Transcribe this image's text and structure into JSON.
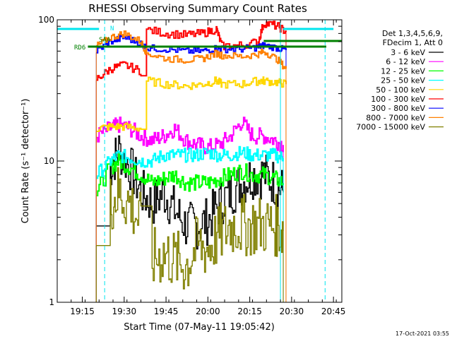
{
  "chart_data": {
    "type": "line",
    "title": "RHESSI Observing Summary Count Rates",
    "xlabel": "Start Time (07-May-11 19:05:42)",
    "ylabel": "Count Rate (s⁻¹ detector⁻¹)",
    "yscale": "log",
    "ylim": [
      1,
      100
    ],
    "xlim": [
      "19:06",
      "20:48"
    ],
    "x_ticks": [
      "19:15",
      "19:30",
      "19:45",
      "20:00",
      "20:15",
      "20:30",
      "20:45"
    ],
    "y_ticks": [
      "1",
      "10",
      "100"
    ],
    "grid": false,
    "legend_position": "right",
    "legend_header": [
      "Det 1,3,4,5,6,9,",
      "FDecim 1, Att 0"
    ],
    "annotations": {
      "flags": [
        "RD6",
        "SAA",
        "N"
      ],
      "timestamp": "17-Oct-2021 03:55"
    },
    "series": [
      {
        "name": "3 - 6 keV",
        "color": "#000000",
        "x": [
          "19:20",
          "19:25",
          "19:28",
          "19:32",
          "19:36",
          "19:40",
          "19:44",
          "19:48",
          "19:52",
          "19:56",
          "20:00",
          "20:04",
          "20:08",
          "20:12",
          "20:16",
          "20:20",
          "20:24",
          "20:27"
        ],
        "y": [
          3.5,
          9,
          12,
          9,
          6,
          5,
          6,
          4.5,
          3.5,
          3.5,
          3.8,
          5,
          6,
          7,
          8,
          8,
          7,
          6
        ]
      },
      {
        "name": "6 - 12 keV",
        "color": "#ff00ff",
        "x": [
          "19:20",
          "19:25",
          "19:28",
          "19:32",
          "19:36",
          "19:40",
          "19:44",
          "19:48",
          "19:52",
          "19:56",
          "20:00",
          "20:04",
          "20:08",
          "20:12",
          "20:16",
          "20:20",
          "20:24",
          "20:27"
        ],
        "y": [
          15,
          17,
          18,
          17,
          15,
          14,
          15,
          17,
          14,
          13,
          12.5,
          13,
          15,
          19,
          15,
          15,
          14,
          13
        ]
      },
      {
        "name": "12 - 25 keV",
        "color": "#00ff00",
        "x": [
          "19:20",
          "19:25",
          "19:28",
          "19:32",
          "19:36",
          "19:40",
          "19:44",
          "19:48",
          "19:52",
          "19:56",
          "20:00",
          "20:04",
          "20:08",
          "20:12",
          "20:16",
          "20:20",
          "20:24",
          "20:27"
        ],
        "y": [
          6,
          9,
          10,
          9,
          8,
          7,
          7.5,
          8,
          7,
          7,
          7,
          7.5,
          8,
          8.5,
          8,
          8,
          7.5,
          7
        ]
      },
      {
        "name": "25 - 50 keV",
        "color": "#00ffff",
        "x": [
          "19:20",
          "19:25",
          "19:28",
          "19:32",
          "19:36",
          "19:40",
          "19:44",
          "19:48",
          "19:52",
          "19:56",
          "20:00",
          "20:04",
          "20:08",
          "20:12",
          "20:16",
          "20:20",
          "20:24",
          "20:27"
        ],
        "y": [
          8,
          10,
          11,
          10.5,
          10,
          10,
          11,
          11,
          11,
          11,
          11.5,
          11,
          11,
          11.5,
          11,
          11,
          11,
          10.5
        ]
      },
      {
        "name": "50 - 100 keV",
        "color": "#ffd700",
        "x": [
          "19:20",
          "19:25",
          "19:30",
          "19:36",
          "19:38",
          "19:45",
          "19:52",
          "19:58",
          "20:03",
          "20:05",
          "20:12",
          "20:18",
          "20:20",
          "20:25",
          "20:28"
        ],
        "y": [
          17,
          17.5,
          17.5,
          17,
          37,
          35,
          34,
          35,
          37,
          35,
          35,
          37,
          37,
          36,
          35
        ]
      },
      {
        "name": "100 - 300 keV",
        "color": "#ff0000",
        "x": [
          "19:20",
          "19:25",
          "19:30",
          "19:36",
          "19:38",
          "19:45",
          "19:52",
          "19:58",
          "20:03",
          "20:05",
          "20:12",
          "20:18",
          "20:20",
          "20:25",
          "20:28"
        ],
        "y": [
          38,
          45,
          48,
          43,
          85,
          80,
          78,
          80,
          86,
          65,
          66,
          70,
          95,
          90,
          82
        ]
      },
      {
        "name": "300 - 800 keV",
        "color": "#0000ff",
        "x": [
          "19:20",
          "19:25",
          "19:30",
          "19:36",
          "19:38",
          "19:45",
          "19:52",
          "19:58",
          "20:03",
          "20:05",
          "20:12",
          "20:18",
          "20:20",
          "20:25",
          "20:28"
        ],
        "y": [
          60,
          70,
          75,
          68,
          63,
          62,
          60,
          60,
          63,
          62,
          62,
          64,
          66,
          63,
          61
        ]
      },
      {
        "name": "800 - 7000 keV",
        "color": "#ff8000",
        "x": [
          "19:20",
          "19:25",
          "19:30",
          "19:36",
          "19:38",
          "19:45",
          "19:52",
          "19:58",
          "20:03",
          "20:05",
          "20:12",
          "20:18",
          "20:20",
          "20:25",
          "20:28"
        ],
        "y": [
          65,
          75,
          80,
          70,
          58,
          53,
          52,
          53,
          58,
          56,
          55,
          57,
          60,
          52,
          45
        ]
      },
      {
        "name": "7000 - 15000 keV",
        "color": "#808000",
        "x": [
          "19:20",
          "19:25",
          "19:28",
          "19:32",
          "19:36",
          "19:40",
          "19:44",
          "19:48",
          "19:52",
          "19:56",
          "20:00",
          "20:04",
          "20:08",
          "20:12",
          "20:16",
          "20:20",
          "20:24",
          "20:27"
        ],
        "y": [
          2.5,
          5,
          6,
          5,
          3.5,
          2,
          2.2,
          2,
          1.8,
          2.5,
          2.4,
          3,
          3.5,
          3.5,
          3.5,
          3.5,
          3.5,
          3.2
        ]
      }
    ]
  }
}
